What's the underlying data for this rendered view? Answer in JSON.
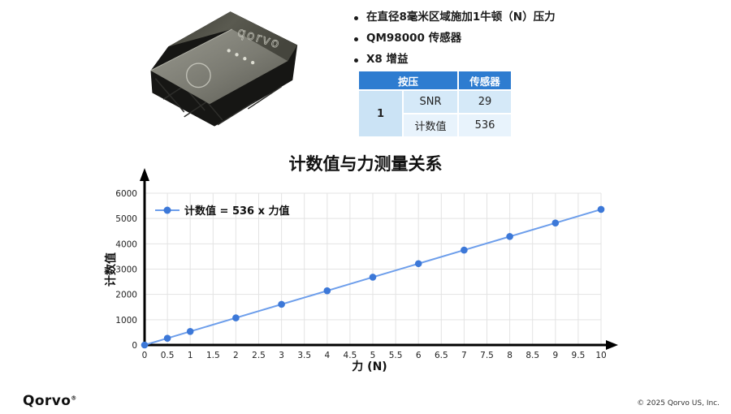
{
  "bullets": [
    "在直径8毫米区域施加1牛顿（N）压力",
    "QM98000 传感器",
    "X8 增益"
  ],
  "table": {
    "col_headers": [
      "按压",
      "传感器"
    ],
    "press_value": "1",
    "rows": [
      {
        "metric": "SNR",
        "value": "29"
      },
      {
        "metric": "计数值",
        "value": "536"
      }
    ],
    "header_bg": "#2e7cd0",
    "cell_bg": "#d5e9f8"
  },
  "chart_data": {
    "type": "line",
    "title": "计数值与力测量关系",
    "xlabel": "力 (N)",
    "ylabel": "计数值",
    "legend": "计数值 = 536 x 力值",
    "x": [
      0,
      0.5,
      1,
      2,
      3,
      4,
      5,
      6,
      7,
      8,
      9,
      10
    ],
    "y": [
      0,
      268,
      536,
      1072,
      1608,
      2144,
      2680,
      3216,
      3752,
      4288,
      4824,
      5360
    ],
    "xlim": [
      0,
      10
    ],
    "ylim": [
      0,
      6000
    ],
    "xtick_step": 0.5,
    "ytick_step": 1000,
    "grid": true,
    "legend_position": "top-left",
    "line_color": "#6d9eeb",
    "marker_color": "#3c78d8",
    "grid_color": "#e3e3e3",
    "axis_color": "#000000"
  },
  "product": {
    "engraving": "qorvo"
  },
  "footer": {
    "logo_text": "Qorvo",
    "trademark": "®",
    "copyright": "© 2025 Qorvo US, Inc."
  }
}
